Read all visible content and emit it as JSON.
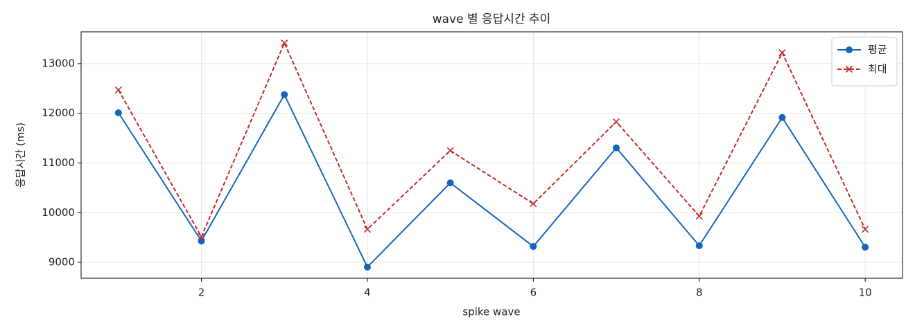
{
  "chart_data": {
    "type": "line",
    "title": "wave 별 응답시간 추이",
    "x_label": "spike wave",
    "y_label": "응답시간 (ms)",
    "x": [
      1,
      2,
      3,
      4,
      5,
      6,
      7,
      8,
      9,
      10
    ],
    "series": [
      {
        "name": "평균",
        "color": "#1565c0",
        "marker": "circle",
        "dashed": false,
        "values": [
          12010,
          9430,
          12375,
          8905,
          10600,
          9320,
          11305,
          9335,
          11915,
          9305
        ]
      },
      {
        "name": "최대",
        "color": "#c62828",
        "marker": "x",
        "dashed": true,
        "values": [
          12470,
          9515,
          13415,
          9665,
          11250,
          10180,
          11830,
          9930,
          13220,
          9665
        ]
      }
    ],
    "xlim": [
      0.55,
      10.45
    ],
    "xticks": [
      2,
      4,
      6,
      8,
      10
    ],
    "ylim": [
      8680,
      13640
    ],
    "yticks": [
      9000,
      10000,
      11000,
      12000,
      13000
    ],
    "grid": true,
    "legend": "upper-right"
  }
}
